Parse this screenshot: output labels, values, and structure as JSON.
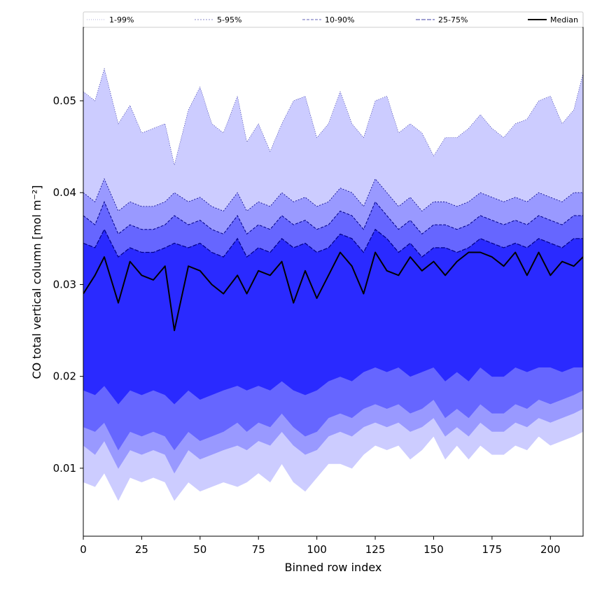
{
  "chart_data": {
    "type": "area",
    "xlabel": "Binned row index",
    "ylabel": "CO total vertical column [mol m⁻²]",
    "xlim": [
      0,
      214
    ],
    "ylim": [
      0.0026,
      0.058
    ],
    "xticks": [
      0,
      25,
      50,
      75,
      100,
      125,
      150,
      175,
      200
    ],
    "yticks": [
      0.01,
      0.02,
      0.03,
      0.04,
      0.05
    ],
    "ytick_labels": [
      "0.01",
      "0.02",
      "0.03",
      "0.04",
      "0.05"
    ],
    "legend_position": "top, horizontal row above the axes",
    "colors": {
      "band_1_99": "#ccccff",
      "band_5_95": "#9999ff",
      "band_10_90": "#6666ff",
      "band_25_75": "#2a2aff",
      "median": "#000000",
      "edge_dark": "#000088"
    },
    "x_sample": [
      0,
      5,
      9,
      15,
      20,
      25,
      30,
      35,
      39,
      45,
      50,
      55,
      60,
      66,
      70,
      75,
      80,
      85,
      90,
      95,
      100,
      105,
      110,
      115,
      120,
      125,
      130,
      135,
      140,
      145,
      150,
      155,
      160,
      165,
      170,
      175,
      180,
      185,
      190,
      195,
      200,
      205,
      210,
      214
    ],
    "series": [
      {
        "name": "Median",
        "kind": "line",
        "values": [
          0.029,
          0.031,
          0.033,
          0.028,
          0.0325,
          0.031,
          0.0305,
          0.032,
          0.025,
          0.032,
          0.0315,
          0.03,
          0.029,
          0.031,
          0.029,
          0.0315,
          0.031,
          0.0325,
          0.028,
          0.0315,
          0.0285,
          0.031,
          0.0335,
          0.032,
          0.029,
          0.0335,
          0.0315,
          0.031,
          0.033,
          0.0315,
          0.0325,
          0.031,
          0.0325,
          0.0335,
          0.0335,
          0.033,
          0.032,
          0.0335,
          0.031,
          0.0335,
          0.031,
          0.0325,
          0.032,
          0.033
        ]
      },
      {
        "name": "1-99%",
        "kind": "band",
        "lower": [
          0.0085,
          0.008,
          0.0095,
          0.0065,
          0.009,
          0.0085,
          0.009,
          0.0085,
          0.0065,
          0.0085,
          0.0075,
          0.008,
          0.0085,
          0.008,
          0.0085,
          0.0095,
          0.0085,
          0.0105,
          0.0085,
          0.0075,
          0.009,
          0.0105,
          0.0105,
          0.01,
          0.0115,
          0.0125,
          0.012,
          0.0125,
          0.011,
          0.012,
          0.0135,
          0.011,
          0.0125,
          0.011,
          0.0125,
          0.0115,
          0.0115,
          0.0125,
          0.012,
          0.0135,
          0.0125,
          0.013,
          0.0135,
          0.014
        ],
        "upper": [
          0.051,
          0.05,
          0.0535,
          0.0475,
          0.0495,
          0.0465,
          0.047,
          0.0475,
          0.043,
          0.049,
          0.0515,
          0.0475,
          0.0465,
          0.0505,
          0.0455,
          0.0475,
          0.0445,
          0.0475,
          0.05,
          0.0505,
          0.046,
          0.0475,
          0.051,
          0.0475,
          0.046,
          0.05,
          0.0505,
          0.0465,
          0.0475,
          0.0465,
          0.044,
          0.046,
          0.046,
          0.047,
          0.0485,
          0.047,
          0.046,
          0.0475,
          0.048,
          0.05,
          0.0505,
          0.0475,
          0.049,
          0.053
        ]
      },
      {
        "name": "5-95%",
        "kind": "band",
        "lower": [
          0.0125,
          0.0115,
          0.013,
          0.01,
          0.012,
          0.0115,
          0.012,
          0.0115,
          0.0095,
          0.012,
          0.011,
          0.0115,
          0.012,
          0.0125,
          0.012,
          0.013,
          0.0125,
          0.014,
          0.0125,
          0.0115,
          0.012,
          0.0135,
          0.014,
          0.0135,
          0.0145,
          0.015,
          0.0145,
          0.015,
          0.014,
          0.0145,
          0.0155,
          0.0135,
          0.0145,
          0.0135,
          0.015,
          0.014,
          0.014,
          0.015,
          0.0145,
          0.0155,
          0.015,
          0.0155,
          0.016,
          0.0165
        ],
        "upper": [
          0.04,
          0.039,
          0.0415,
          0.038,
          0.039,
          0.0385,
          0.0385,
          0.039,
          0.04,
          0.039,
          0.0395,
          0.0385,
          0.038,
          0.04,
          0.038,
          0.039,
          0.0385,
          0.04,
          0.039,
          0.0395,
          0.0385,
          0.039,
          0.0405,
          0.04,
          0.0385,
          0.0415,
          0.04,
          0.0385,
          0.0395,
          0.038,
          0.039,
          0.039,
          0.0385,
          0.039,
          0.04,
          0.0395,
          0.039,
          0.0395,
          0.039,
          0.04,
          0.0395,
          0.039,
          0.04,
          0.04
        ]
      },
      {
        "name": "10-90%",
        "kind": "band",
        "lower": [
          0.0145,
          0.014,
          0.015,
          0.012,
          0.014,
          0.0135,
          0.014,
          0.0135,
          0.012,
          0.014,
          0.013,
          0.0135,
          0.014,
          0.015,
          0.014,
          0.015,
          0.0145,
          0.016,
          0.0145,
          0.0135,
          0.014,
          0.0155,
          0.016,
          0.0155,
          0.0165,
          0.017,
          0.0165,
          0.017,
          0.016,
          0.0165,
          0.0175,
          0.0155,
          0.0165,
          0.0155,
          0.017,
          0.016,
          0.016,
          0.017,
          0.0165,
          0.0175,
          0.017,
          0.0175,
          0.018,
          0.0185
        ],
        "upper": [
          0.0375,
          0.0365,
          0.039,
          0.0355,
          0.0365,
          0.036,
          0.036,
          0.0365,
          0.0375,
          0.0365,
          0.037,
          0.036,
          0.0355,
          0.0375,
          0.0355,
          0.0365,
          0.036,
          0.0375,
          0.0365,
          0.037,
          0.036,
          0.0365,
          0.038,
          0.0375,
          0.036,
          0.039,
          0.0375,
          0.036,
          0.037,
          0.0355,
          0.0365,
          0.0365,
          0.036,
          0.0365,
          0.0375,
          0.037,
          0.0365,
          0.037,
          0.0365,
          0.0375,
          0.037,
          0.0365,
          0.0375,
          0.0375
        ]
      },
      {
        "name": "25-75%",
        "kind": "band",
        "lower": [
          0.0185,
          0.018,
          0.019,
          0.017,
          0.0185,
          0.018,
          0.0185,
          0.018,
          0.017,
          0.0185,
          0.0175,
          0.018,
          0.0185,
          0.019,
          0.0185,
          0.019,
          0.0185,
          0.0195,
          0.0185,
          0.018,
          0.0185,
          0.0195,
          0.02,
          0.0195,
          0.0205,
          0.021,
          0.0205,
          0.021,
          0.02,
          0.0205,
          0.021,
          0.0195,
          0.0205,
          0.0195,
          0.021,
          0.02,
          0.02,
          0.021,
          0.0205,
          0.021,
          0.021,
          0.0205,
          0.021,
          0.021
        ],
        "upper": [
          0.0345,
          0.034,
          0.036,
          0.033,
          0.034,
          0.0335,
          0.0335,
          0.034,
          0.0345,
          0.034,
          0.0345,
          0.0335,
          0.033,
          0.035,
          0.033,
          0.034,
          0.0335,
          0.035,
          0.034,
          0.0345,
          0.0335,
          0.034,
          0.0355,
          0.035,
          0.0335,
          0.036,
          0.035,
          0.0335,
          0.0345,
          0.033,
          0.034,
          0.034,
          0.0335,
          0.034,
          0.035,
          0.0345,
          0.034,
          0.0345,
          0.034,
          0.035,
          0.0345,
          0.034,
          0.035,
          0.035
        ]
      }
    ]
  }
}
